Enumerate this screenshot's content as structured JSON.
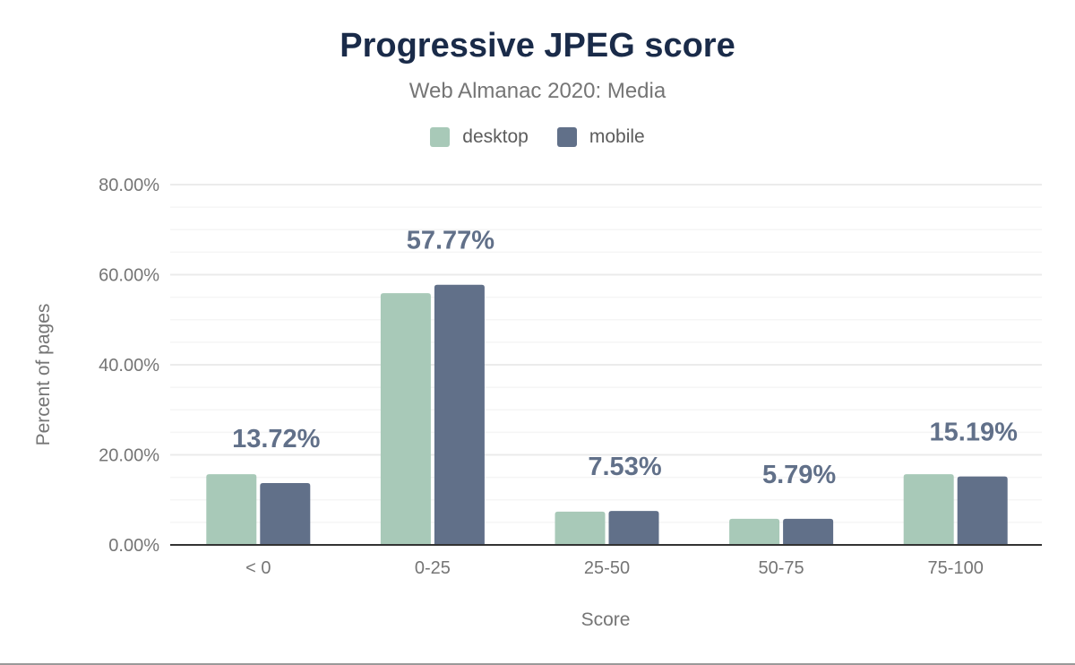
{
  "chart_data": {
    "type": "bar",
    "title": "Progressive JPEG score",
    "subtitle": "Web Almanac 2020: Media",
    "xlabel": "Score",
    "ylabel": "Percent of pages",
    "categories": [
      "< 0",
      "0-25",
      "25-50",
      "50-75",
      "75-100"
    ],
    "series": [
      {
        "name": "desktop",
        "color": "#a8c9b8",
        "values": [
          15.7,
          55.9,
          7.4,
          5.8,
          15.7
        ]
      },
      {
        "name": "mobile",
        "color": "#617089",
        "values": [
          13.72,
          57.77,
          7.53,
          5.79,
          15.19
        ]
      }
    ],
    "data_labels": [
      "13.72%",
      "57.77%",
      "7.53%",
      "5.79%",
      "15.19%"
    ],
    "ylim": [
      0,
      80
    ],
    "yticks": [
      "0.00%",
      "20.00%",
      "40.00%",
      "60.00%",
      "80.00%"
    ],
    "grid": true,
    "legend_position": "top"
  }
}
